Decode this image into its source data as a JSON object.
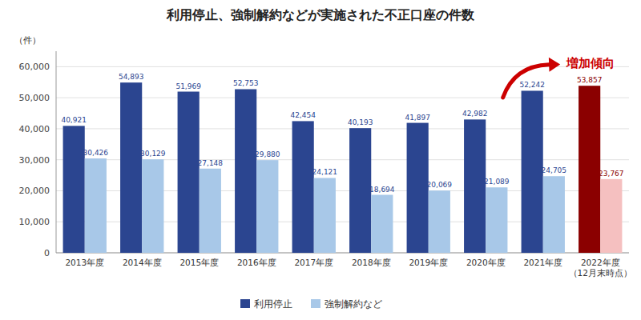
{
  "chart_data": {
    "type": "bar",
    "title": "利用停止、強制解約などが実施された不正口座の件数",
    "y_label": "（件）",
    "categories": [
      "2013年度",
      "2014年度",
      "2015年度",
      "2016年度",
      "2017年度",
      "2018年度",
      "2019年度",
      "2020年度",
      "2021年度",
      "2022年度\n（12月末時点）"
    ],
    "series": [
      {
        "name": "利用停止",
        "color": "#2b4590",
        "colors": [
          "#2b4590",
          "#2b4590",
          "#2b4590",
          "#2b4590",
          "#2b4590",
          "#2b4590",
          "#2b4590",
          "#2b4590",
          "#2b4590",
          "#8b0000"
        ],
        "values": [
          40921,
          54893,
          51969,
          52753,
          42454,
          40193,
          41897,
          42982,
          52242,
          53857
        ],
        "value_labels": [
          "40,921",
          "54,893",
          "51,969",
          "52,753",
          "42,454",
          "40,193",
          "41,897",
          "42,982",
          "52,242",
          "53,857"
        ]
      },
      {
        "name": "強制解約など",
        "color": "#a8c8e8",
        "colors": [
          "#a8c8e8",
          "#a8c8e8",
          "#a8c8e8",
          "#a8c8e8",
          "#a8c8e8",
          "#a8c8e8",
          "#a8c8e8",
          "#a8c8e8",
          "#a8c8e8",
          "#f5c0c0"
        ],
        "values": [
          30426,
          30129,
          27148,
          29880,
          24121,
          18694,
          20069,
          21089,
          24705,
          23767
        ],
        "value_labels": [
          "30,426",
          "30,129",
          "27,148",
          "29,880",
          "24,121",
          "18,694",
          "20,069",
          "21,089",
          "24,705",
          "23,767"
        ]
      }
    ],
    "ylim": [
      0,
      65000
    ],
    "yticks": [
      0,
      {
        "value": 10000,
        "label": "10,000"
      },
      {
        "value": 20000,
        "label": "20,000"
      },
      {
        "value": 30000,
        "label": "30,000"
      },
      {
        "value": 40000,
        "label": "40,000"
      },
      {
        "value": 50000,
        "label": "50,000"
      },
      {
        "value": 60000,
        "label": "60,000"
      }
    ],
    "grid": true,
    "legend": "bottom",
    "data_labels": true,
    "annotations": [
      {
        "text": "増加傾向",
        "color": "#cc0000"
      }
    ]
  }
}
